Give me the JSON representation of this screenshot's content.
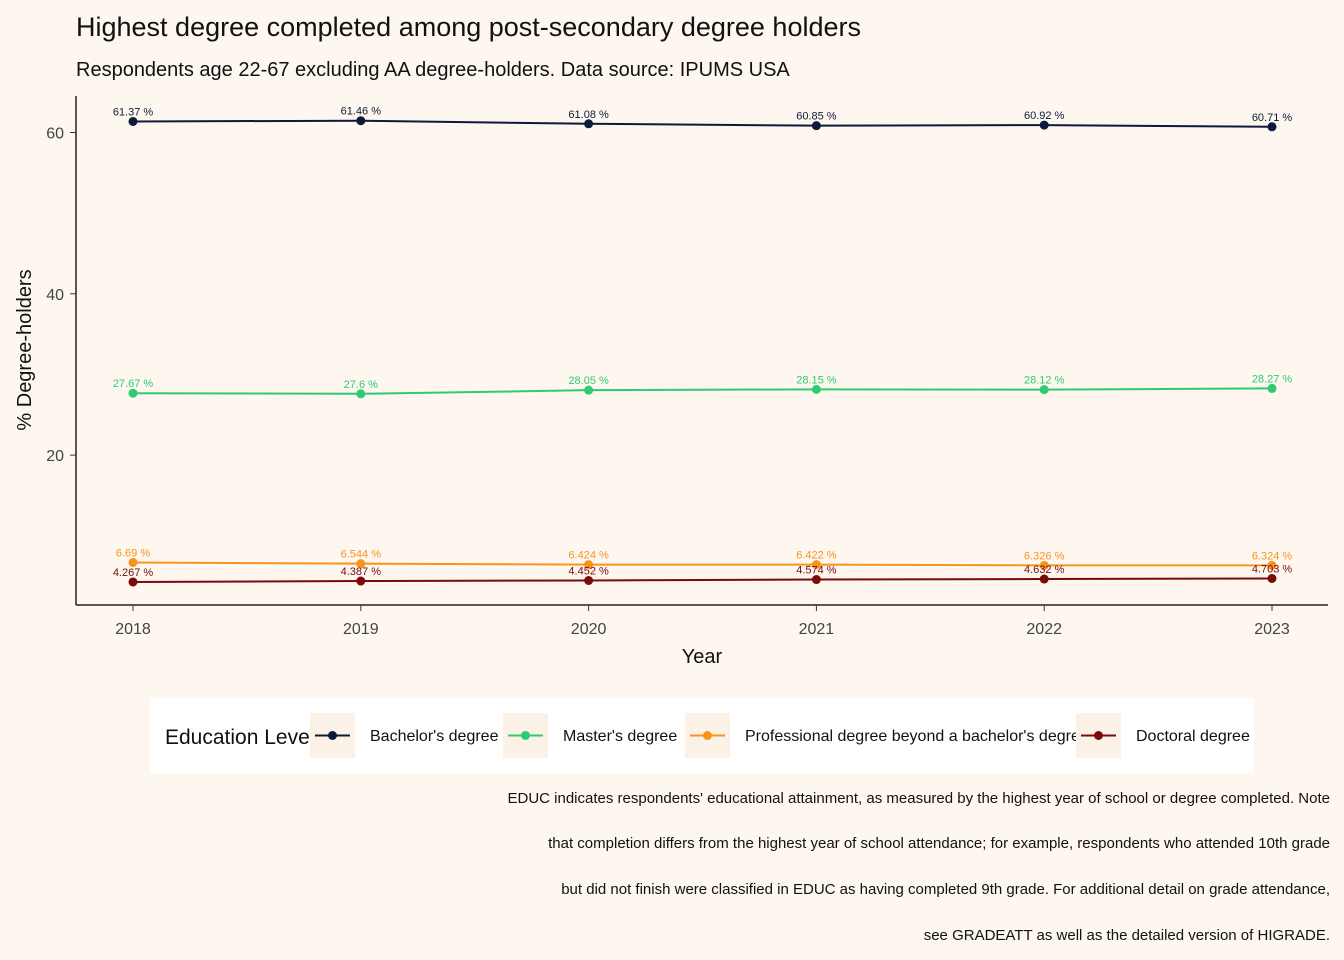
{
  "chart_data": {
    "type": "line",
    "title": "Highest degree completed among post-secondary degree holders",
    "subtitle": "Respondents age 22-67 excluding AA degree-holders. Data source: IPUMS USA",
    "xlabel": "Year",
    "ylabel": "% Degree-holders",
    "x": [
      2018,
      2019,
      2020,
      2021,
      2022,
      2023
    ],
    "x_tick_labels": [
      "2018",
      "2019",
      "2020",
      "2021",
      "2022",
      "2023"
    ],
    "ylim": [
      0,
      64
    ],
    "y_ticks": [
      20,
      40,
      60
    ],
    "y_tick_labels": [
      "20",
      "40",
      "60"
    ],
    "grid": false,
    "legend": {
      "title": "Education Level",
      "placement": "bottom"
    },
    "series": [
      {
        "name": "Bachelor's degree",
        "color": "#0d1a3a",
        "values": [
          61.37,
          61.46,
          61.08,
          60.85,
          60.92,
          60.71
        ],
        "labels": [
          "61.37 %",
          "61.46 %",
          "61.08 %",
          "60.85 %",
          "60.92 %",
          "60.71 %"
        ]
      },
      {
        "name": "Master's degree",
        "color": "#2ecc71",
        "values": [
          27.67,
          27.6,
          28.05,
          28.15,
          28.12,
          28.27
        ],
        "labels": [
          "27.67 %",
          "27.6 %",
          "28.05 %",
          "28.15 %",
          "28.12 %",
          "28.27 %"
        ]
      },
      {
        "name": "Professional degree beyond a bachelor's degree",
        "color": "#f7941d",
        "values": [
          6.69,
          6.544,
          6.424,
          6.422,
          6.326,
          6.324
        ],
        "labels": [
          "6.69 %",
          "6.544 %",
          "6.424 %",
          "6.422 %",
          "6.326 %",
          "6.324 %"
        ]
      },
      {
        "name": "Doctoral degree",
        "color": "#7b0a0a",
        "values": [
          4.267,
          4.387,
          4.452,
          4.574,
          4.632,
          4.703
        ],
        "labels": [
          "4.267 %",
          "4.387 %",
          "4.452 %",
          "4.574 %",
          "4.632 %",
          "4.703 %"
        ]
      }
    ],
    "caption": [
      "EDUC indicates respondents' educational attainment, as measured by the highest year of school or degree completed. Note",
      "that completion differs from the highest year of school attendance; for example, respondents who attended 10th grade",
      "but did not finish were classified in EDUC as having completed 9th grade. For additional detail on grade attendance,",
      "see GRADEATT as well as the detailed version of HIGRADE."
    ]
  }
}
